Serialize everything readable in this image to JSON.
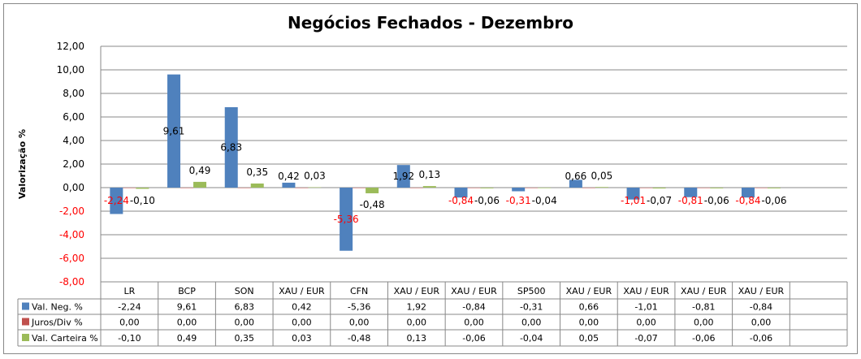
{
  "chart_data": {
    "type": "bar",
    "title": "Negócios Fechados - Dezembro",
    "ylabel": "Valorização %",
    "xlabel": "",
    "ylim": [
      -8,
      12
    ],
    "yticks": [
      "12,00",
      "10,00",
      "8,00",
      "6,00",
      "4,00",
      "2,00",
      "0,00",
      "-2,00",
      "-4,00",
      "-6,00",
      "-8,00"
    ],
    "ytick_values": [
      12,
      10,
      8,
      6,
      4,
      2,
      0,
      -2,
      -4,
      -6,
      -8
    ],
    "negative_tick_color": "#FF0000",
    "grid": true,
    "legend": "data-table",
    "categories": [
      "LR",
      "BCP",
      "SON",
      "XAU / EUR",
      "CFN",
      "XAU / EUR",
      "XAU / EUR",
      "SP500",
      "XAU / EUR",
      "XAU / EUR",
      "XAU / EUR",
      "XAU / EUR",
      ""
    ],
    "series": [
      {
        "name": "Val. Neg. %",
        "color": "#4F81BD",
        "values": [
          -2.24,
          9.61,
          6.83,
          0.42,
          -5.36,
          1.92,
          -0.84,
          -0.31,
          0.66,
          -1.01,
          -0.81,
          -0.84,
          null
        ],
        "labels": [
          "-2,24",
          "9,61",
          "6,83",
          "0,42",
          "-5,36",
          "1,92",
          "-0,84",
          "-0,31",
          "0,66",
          "-1,01",
          "-0,81",
          "-0,84",
          ""
        ],
        "show_labels": true
      },
      {
        "name": "Juros/Div %",
        "color": "#C0504D",
        "values": [
          0,
          0,
          0,
          0,
          0,
          0,
          0,
          0,
          0,
          0,
          0,
          0,
          null
        ],
        "labels": [
          "0,00",
          "0,00",
          "0,00",
          "0,00",
          "0,00",
          "0,00",
          "0,00",
          "0,00",
          "0,00",
          "0,00",
          "0,00",
          "0,00",
          ""
        ],
        "show_labels": false
      },
      {
        "name": "Val. Carteira %",
        "color": "#9BBB59",
        "values": [
          -0.1,
          0.49,
          0.35,
          0.03,
          -0.48,
          0.13,
          -0.06,
          -0.04,
          0.05,
          -0.07,
          -0.06,
          -0.06,
          null
        ],
        "labels": [
          "-0,10",
          "0,49",
          "0,35",
          "0,03",
          "-0,48",
          "0,13",
          "-0,06",
          "-0,04",
          "0,05",
          "-0,07",
          "-0,06",
          "-0,06",
          ""
        ],
        "show_labels": true
      }
    ]
  }
}
